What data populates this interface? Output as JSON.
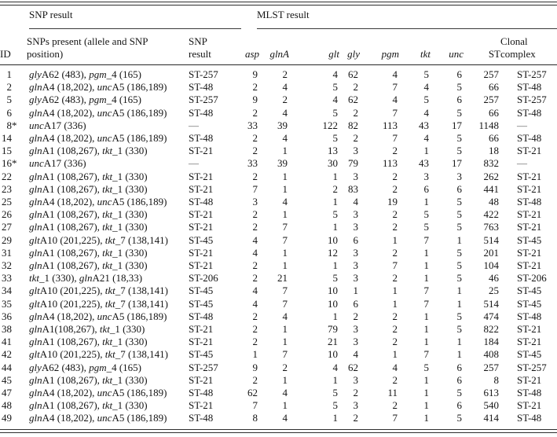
{
  "table": {
    "group_headers": [
      {
        "id": "snp",
        "label": "SNP result"
      },
      {
        "id": "mlst",
        "label": "MLST result"
      }
    ],
    "columns": [
      {
        "key": "id",
        "label": "ID",
        "italic": false
      },
      {
        "key": "snps",
        "label": "SNPs present (allele and SNP position)",
        "italic": false
      },
      {
        "key": "snp_result",
        "label": "SNP result",
        "italic": false
      },
      {
        "key": "asp",
        "label": "asp",
        "italic": true
      },
      {
        "key": "glnA",
        "label": "glnA",
        "italic": true
      },
      {
        "key": "glt",
        "label": "glt",
        "italic": true
      },
      {
        "key": "gly",
        "label": "gly",
        "italic": true
      },
      {
        "key": "pgm",
        "label": "pgm",
        "italic": true
      },
      {
        "key": "tkt",
        "label": "tkt",
        "italic": true
      },
      {
        "key": "unc",
        "label": "unc",
        "italic": true
      },
      {
        "key": "ST",
        "label": "ST",
        "italic": false
      },
      {
        "key": "clonal",
        "label": "Clonal complex",
        "italic": false
      }
    ],
    "dash": "—",
    "rows": [
      {
        "id": "1",
        "star": false,
        "snps": "*gly*A62 (483), *pgm*_4 (165)",
        "snp_result": "ST-257",
        "mlst": [
          9,
          2,
          4,
          62,
          4,
          5,
          6
        ],
        "st": "257",
        "clonal": "ST-257"
      },
      {
        "id": "2",
        "star": false,
        "snps": "*gln*A4 (18,202), *unc*A5 (186,189)",
        "snp_result": "ST-48",
        "mlst": [
          2,
          4,
          5,
          2,
          7,
          4,
          5
        ],
        "st": "66",
        "clonal": "ST-48"
      },
      {
        "id": "5",
        "star": false,
        "snps": "*gly*A62 (483), *pgm*_4 (165)",
        "snp_result": "ST-257",
        "mlst": [
          9,
          2,
          4,
          62,
          4,
          5,
          6
        ],
        "st": "257",
        "clonal": "ST-257"
      },
      {
        "id": "6",
        "star": false,
        "snps": "*gln*A4 (18,202), *unc*A5 (186,189)",
        "snp_result": "ST-48",
        "mlst": [
          2,
          4,
          5,
          2,
          7,
          4,
          5
        ],
        "st": "66",
        "clonal": "ST-48"
      },
      {
        "id": "8",
        "star": true,
        "snps": "*unc*A17 (336)",
        "snp_result": "—",
        "mlst": [
          33,
          39,
          122,
          82,
          113,
          43,
          17
        ],
        "st": "1148",
        "clonal": "—"
      },
      {
        "id": "14",
        "star": false,
        "snps": "*gln*A4 (18,202), *unc*A5 (186,189)",
        "snp_result": "ST-48",
        "mlst": [
          2,
          4,
          5,
          2,
          7,
          4,
          5
        ],
        "st": "66",
        "clonal": "ST-48"
      },
      {
        "id": "15",
        "star": false,
        "snps": "*gln*A1 (108,267), *tkt*_1 (330)",
        "snp_result": "ST-21",
        "mlst": [
          2,
          1,
          13,
          3,
          2,
          1,
          5
        ],
        "st": "18",
        "clonal": "ST-21"
      },
      {
        "id": "16",
        "star": true,
        "snps": "*unc*A17 (336)",
        "snp_result": "—",
        "mlst": [
          33,
          39,
          30,
          79,
          113,
          43,
          17
        ],
        "st": "832",
        "clonal": "—"
      },
      {
        "id": "22",
        "star": false,
        "snps": "*gln*A1 (108,267), *tkt*_1 (330)",
        "snp_result": "ST-21",
        "mlst": [
          2,
          1,
          1,
          3,
          2,
          3,
          3
        ],
        "st": "262",
        "clonal": "ST-21"
      },
      {
        "id": "23",
        "star": false,
        "snps": "*gln*A1 (108,267), *tkt*_1 (330)",
        "snp_result": "ST-21",
        "mlst": [
          7,
          1,
          2,
          83,
          2,
          6,
          6
        ],
        "st": "441",
        "clonal": "ST-21"
      },
      {
        "id": "25",
        "star": false,
        "snps": "*gln*A4 (18,202), *unc*A5 (186,189)",
        "snp_result": "ST-48",
        "mlst": [
          3,
          4,
          1,
          4,
          19,
          1,
          5
        ],
        "st": "48",
        "clonal": "ST-48"
      },
      {
        "id": "26",
        "star": false,
        "snps": "*gln*A1 (108,267), *tkt*_1 (330)",
        "snp_result": "ST-21",
        "mlst": [
          2,
          1,
          5,
          3,
          2,
          5,
          5
        ],
        "st": "422",
        "clonal": "ST-21"
      },
      {
        "id": "27",
        "star": false,
        "snps": "*gln*A1 (108,267), *tkt*_1 (330)",
        "snp_result": "ST-21",
        "mlst": [
          2,
          7,
          1,
          3,
          2,
          5,
          5
        ],
        "st": "763",
        "clonal": "ST-21"
      },
      {
        "id": "29",
        "star": false,
        "snps": "*glt*A10 (201,225), *tkt*_7 (138,141)",
        "snp_result": "ST-45",
        "mlst": [
          4,
          7,
          10,
          6,
          1,
          7,
          1
        ],
        "st": "514",
        "clonal": "ST-45"
      },
      {
        "id": "31",
        "star": false,
        "snps": "*gln*A1 (108,267), *tkt*_1 (330)",
        "snp_result": "ST-21",
        "mlst": [
          4,
          1,
          12,
          3,
          2,
          1,
          5
        ],
        "st": "201",
        "clonal": "ST-21"
      },
      {
        "id": "32",
        "star": false,
        "snps": "*gln*A1 (108,267), *tkt*_1 (330)",
        "snp_result": "ST-21",
        "mlst": [
          2,
          1,
          1,
          3,
          7,
          1,
          5
        ],
        "st": "104",
        "clonal": "ST-21"
      },
      {
        "id": "33",
        "star": false,
        "snps": "*tkt*_1 (330), *gln*A21 (18,33)",
        "snp_result": "ST-206",
        "mlst": [
          2,
          21,
          5,
          3,
          2,
          1,
          5
        ],
        "st": "46",
        "clonal": "ST-206"
      },
      {
        "id": "34",
        "star": false,
        "snps": "*glt*A10 (201,225), *tkt*_7 (138,141)",
        "snp_result": "ST-45",
        "mlst": [
          4,
          7,
          10,
          1,
          1,
          7,
          1
        ],
        "st": "25",
        "clonal": "ST-45"
      },
      {
        "id": "35",
        "star": false,
        "snps": "*glt*A10 (201,225), *tkt*_7 (138,141)",
        "snp_result": "ST-45",
        "mlst": [
          4,
          7,
          10,
          6,
          1,
          7,
          1
        ],
        "st": "514",
        "clonal": "ST-45"
      },
      {
        "id": "36",
        "star": false,
        "snps": "*gln*A4 (18,202), *unc*A5 (186,189)",
        "snp_result": "ST-48",
        "mlst": [
          2,
          4,
          1,
          2,
          2,
          1,
          5
        ],
        "st": "474",
        "clonal": "ST-48"
      },
      {
        "id": "38",
        "star": false,
        "snps": "*gln*A1(108,267), *tkt*_1 (330)",
        "snp_result": "ST-21",
        "mlst": [
          2,
          1,
          79,
          3,
          2,
          1,
          5
        ],
        "st": "822",
        "clonal": "ST-21"
      },
      {
        "id": "41",
        "star": false,
        "snps": "*gln*A1 (108,267), *tkt*_1 (330)",
        "snp_result": "ST-21",
        "mlst": [
          2,
          1,
          21,
          3,
          2,
          1,
          1
        ],
        "st": "184",
        "clonal": "ST-21"
      },
      {
        "id": "42",
        "star": false,
        "snps": "*glt*A10 (201,225), *tkt*_7 (138,141)",
        "snp_result": "ST-45",
        "mlst": [
          1,
          7,
          10,
          4,
          1,
          7,
          1
        ],
        "st": "408",
        "clonal": "ST-45"
      },
      {
        "id": "44",
        "star": false,
        "snps": "*gly*A62 (483), *pgm*_4 (165)",
        "snp_result": "ST-257",
        "mlst": [
          9,
          2,
          4,
          62,
          4,
          5,
          6
        ],
        "st": "257",
        "clonal": "ST-257"
      },
      {
        "id": "45",
        "star": false,
        "snps": "*gln*A1 (108,267), *tkt*_1 (330)",
        "snp_result": "ST-21",
        "mlst": [
          2,
          1,
          1,
          3,
          2,
          1,
          6
        ],
        "st": "8",
        "clonal": "ST-21"
      },
      {
        "id": "47",
        "star": false,
        "snps": "*gln*A4 (18,202), *unc*A5 (186,189)",
        "snp_result": "ST-48",
        "mlst": [
          62,
          4,
          5,
          2,
          11,
          1,
          5
        ],
        "st": "613",
        "clonal": "ST-48"
      },
      {
        "id": "48",
        "star": false,
        "snps": "*gln*A1 (108,267), *tkt*_1 (330)",
        "snp_result": "ST-21",
        "mlst": [
          7,
          1,
          5,
          3,
          2,
          1,
          6
        ],
        "st": "540",
        "clonal": "ST-21"
      },
      {
        "id": "49",
        "star": false,
        "snps": "*gln*A4 (18,202), *unc*A5 (186,189)",
        "snp_result": "ST-48",
        "mlst": [
          8,
          4,
          1,
          2,
          7,
          1,
          5
        ],
        "st": "414",
        "clonal": "ST-48"
      }
    ]
  }
}
